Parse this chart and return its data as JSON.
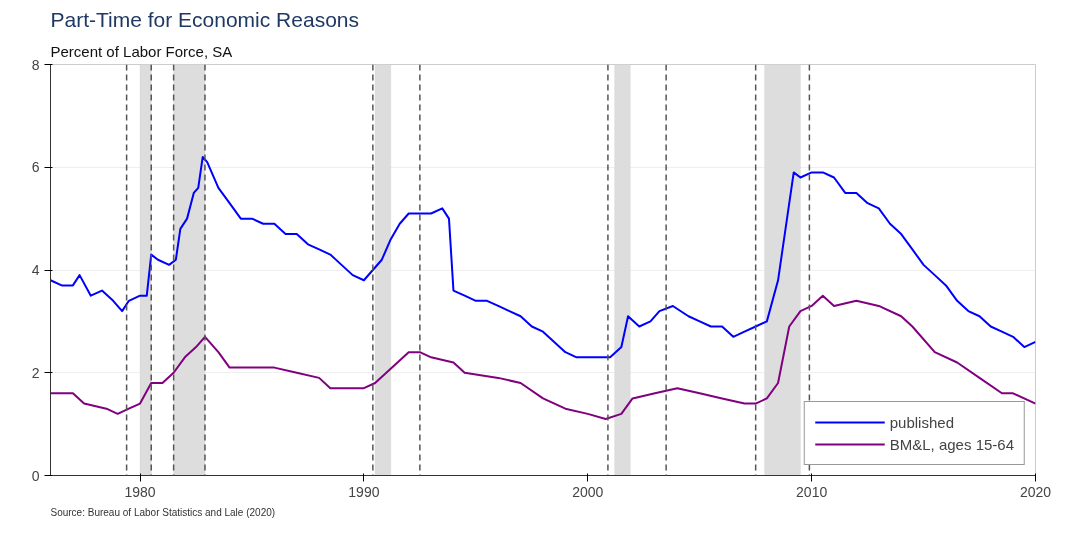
{
  "chart_data": {
    "type": "line",
    "title": "Part-Time for Economic Reasons",
    "subtitle": "Percent of Labor Force, SA",
    "annotations": [
      "Source: Bureau of Labor Statistics and Lale (2020)"
    ],
    "xlim": [
      1976,
      2020
    ],
    "xticks": [
      1980,
      1990,
      2000,
      2010,
      2020
    ],
    "ylim": [
      0,
      8
    ],
    "yticks": [
      0,
      2,
      4,
      6,
      8
    ],
    "grid": "y",
    "legend": "bottom right",
    "line_style": "solid",
    "marker": "none",
    "series": [
      {
        "name": "published",
        "color": "#0000ff",
        "x": [
          1976.0,
          1976.5,
          1977.0,
          1977.3,
          1977.8,
          1978.3,
          1978.8,
          1979.2,
          1979.5,
          1980.0,
          1980.3,
          1980.5,
          1980.8,
          1981.3,
          1981.6,
          1981.8,
          1982.1,
          1982.4,
          1982.6,
          1982.8,
          1983.0,
          1983.5,
          1984.0,
          1984.5,
          1985.0,
          1985.5,
          1986.0,
          1986.5,
          1987.0,
          1987.5,
          1988.0,
          1988.5,
          1989.0,
          1989.5,
          1990.0,
          1990.4,
          1990.8,
          1991.2,
          1991.6,
          1992.0,
          1992.5,
          1993.0,
          1993.5,
          1993.8,
          1994.0,
          1994.5,
          1995.0,
          1995.5,
          1996.0,
          1996.5,
          1997.0,
          1997.5,
          1998.0,
          1998.5,
          1999.0,
          1999.5,
          2000.0,
          2000.5,
          2001.0,
          2001.5,
          2001.8,
          2002.3,
          2002.8,
          2003.2,
          2003.8,
          2004.5,
          2005.0,
          2005.5,
          2006.0,
          2006.5,
          2007.0,
          2007.5,
          2008.0,
          2008.5,
          2008.9,
          2009.2,
          2009.5,
          2010.0,
          2010.5,
          2011.0,
          2011.5,
          2012.0,
          2012.5,
          2013.0,
          2013.5,
          2014.0,
          2014.5,
          2015.0,
          2015.5,
          2016.0,
          2016.5,
          2017.0,
          2017.5,
          2018.0,
          2018.5,
          2019.0,
          2019.5,
          2020.0
        ],
        "values": [
          3.8,
          3.7,
          3.7,
          3.9,
          3.5,
          3.6,
          3.4,
          3.2,
          3.4,
          3.5,
          3.5,
          4.3,
          4.2,
          4.1,
          4.2,
          4.8,
          5.0,
          5.5,
          5.6,
          6.2,
          6.1,
          5.6,
          5.3,
          5.0,
          5.0,
          4.9,
          4.9,
          4.7,
          4.7,
          4.5,
          4.4,
          4.3,
          4.1,
          3.9,
          3.8,
          4.0,
          4.2,
          4.6,
          4.9,
          5.1,
          5.1,
          5.1,
          5.2,
          5.0,
          3.6,
          3.5,
          3.4,
          3.4,
          3.3,
          3.2,
          3.1,
          2.9,
          2.8,
          2.6,
          2.4,
          2.3,
          2.3,
          2.3,
          2.3,
          2.5,
          3.1,
          2.9,
          3.0,
          3.2,
          3.3,
          3.1,
          3.0,
          2.9,
          2.9,
          2.7,
          2.8,
          2.9,
          3.0,
          3.8,
          5.0,
          5.9,
          5.8,
          5.9,
          5.9,
          5.8,
          5.5,
          5.5,
          5.3,
          5.2,
          4.9,
          4.7,
          4.4,
          4.1,
          3.9,
          3.7,
          3.4,
          3.2,
          3.1,
          2.9,
          2.8,
          2.7,
          2.5,
          2.6
        ]
      },
      {
        "name": "BM&L, ages 15-64",
        "color": "#800080",
        "x": [
          1976.0,
          1977.0,
          1977.5,
          1978.5,
          1979.0,
          1979.5,
          1980.0,
          1980.5,
          1981.0,
          1981.5,
          1982.0,
          1982.5,
          1982.9,
          1983.5,
          1984.0,
          1985.0,
          1986.0,
          1987.0,
          1988.0,
          1988.5,
          1989.5,
          1990.0,
          1990.5,
          1991.0,
          1991.5,
          1992.0,
          1992.5,
          1993.0,
          1994.0,
          1994.5,
          1996.0,
          1997.0,
          1998.0,
          1999.0,
          2000.0,
          2000.8,
          2001.5,
          2002.0,
          2003.0,
          2004.0,
          2005.0,
          2006.0,
          2007.0,
          2007.5,
          2008.0,
          2008.5,
          2009.0,
          2009.5,
          2010.0,
          2010.5,
          2011.0,
          2012.0,
          2013.0,
          2014.0,
          2014.5,
          2015.5,
          2016.5,
          2017.5,
          2018.5,
          2019.0,
          2020.0
        ],
        "values": [
          1.6,
          1.6,
          1.4,
          1.3,
          1.2,
          1.3,
          1.4,
          1.8,
          1.8,
          2.0,
          2.3,
          2.5,
          2.7,
          2.4,
          2.1,
          2.1,
          2.1,
          2.0,
          1.9,
          1.7,
          1.7,
          1.7,
          1.8,
          2.0,
          2.2,
          2.4,
          2.4,
          2.3,
          2.2,
          2.0,
          1.9,
          1.8,
          1.5,
          1.3,
          1.2,
          1.1,
          1.2,
          1.5,
          1.6,
          1.7,
          1.6,
          1.5,
          1.4,
          1.4,
          1.5,
          1.8,
          2.9,
          3.2,
          3.3,
          3.5,
          3.3,
          3.4,
          3.3,
          3.1,
          2.9,
          2.4,
          2.2,
          1.9,
          1.6,
          1.6,
          1.4
        ]
      }
    ],
    "ref_lines": [
      {
        "axis": "x",
        "value": 1979.4,
        "color": "#555555",
        "line_style": "dashed"
      },
      {
        "axis": "x",
        "value": 1980.5,
        "color": "#555555",
        "line_style": "dashed"
      },
      {
        "axis": "x",
        "value": 1981.5,
        "color": "#555555",
        "line_style": "dashed"
      },
      {
        "axis": "x",
        "value": 1982.9,
        "color": "#555555",
        "line_style": "dashed"
      },
      {
        "axis": "x",
        "value": 1990.4,
        "color": "#555555",
        "line_style": "dashed"
      },
      {
        "axis": "x",
        "value": 1992.5,
        "color": "#555555",
        "line_style": "dashed"
      },
      {
        "axis": "x",
        "value": 2000.9,
        "color": "#555555",
        "line_style": "dashed"
      },
      {
        "axis": "x",
        "value": 2003.5,
        "color": "#555555",
        "line_style": "dashed"
      },
      {
        "axis": "x",
        "value": 2007.5,
        "color": "#555555",
        "line_style": "dashed"
      },
      {
        "axis": "x",
        "value": 2009.9,
        "color": "#555555",
        "line_style": "dashed"
      }
    ],
    "bands": [
      {
        "axis": "x",
        "from": 1980.0,
        "to": 1980.5,
        "color": "#dddddd"
      },
      {
        "axis": "x",
        "from": 1981.5,
        "to": 1982.9,
        "color": "#dddddd"
      },
      {
        "axis": "x",
        "from": 1990.5,
        "to": 1991.2,
        "color": "#dddddd"
      },
      {
        "axis": "x",
        "from": 2001.2,
        "to": 2001.9,
        "color": "#dddddd"
      },
      {
        "axis": "x",
        "from": 2007.9,
        "to": 2009.5,
        "color": "#dddddd"
      }
    ]
  }
}
